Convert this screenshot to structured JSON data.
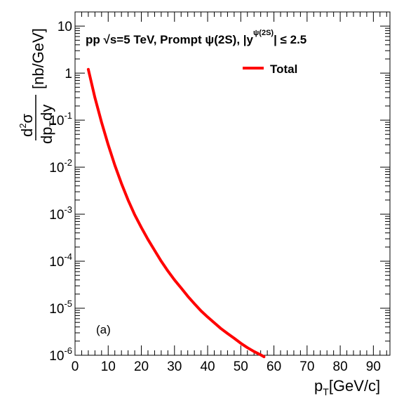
{
  "chart_data": {
    "type": "line",
    "title": "pp  √s=5 TeV, Prompt  ψ(2S), |y",
    "title_superscript": "ψ(2S)",
    "title_suffix": "| ≤ 2.5",
    "xlabel": "p",
    "xlabel_sub": "T",
    "xlabel_unit": "[GeV/c]",
    "ylabel_num": "d",
    "ylabel_num_sup": "2",
    "ylabel_num_tail": "σ",
    "ylabel_den": "dp",
    "ylabel_den_sub": "T",
    "ylabel_den_tail": "dy",
    "ylabel_unit": "[nb/GeV]",
    "panel_label": "(a)",
    "xlim": [
      0,
      95
    ],
    "ylim": [
      1e-06,
      20
    ],
    "yscale": "log",
    "x_ticks": [
      0,
      10,
      20,
      30,
      40,
      50,
      60,
      70,
      80,
      90
    ],
    "y_ticks": [
      {
        "value": 1e-06,
        "base": "10",
        "exp": "-6"
      },
      {
        "value": 1e-05,
        "base": "10",
        "exp": "-5"
      },
      {
        "value": 0.0001,
        "base": "10",
        "exp": "-4"
      },
      {
        "value": 0.001,
        "base": "10",
        "exp": "-3"
      },
      {
        "value": 0.01,
        "base": "10",
        "exp": "-2"
      },
      {
        "value": 0.1,
        "base": "10",
        "exp": "-1"
      },
      {
        "value": 1,
        "base": "1",
        "exp": ""
      },
      {
        "value": 10,
        "base": "10",
        "exp": ""
      }
    ],
    "legend": {
      "placement": "top-right"
    },
    "series": [
      {
        "name": "Total",
        "color": "#ff0000",
        "x": [
          4,
          6,
          8,
          10,
          12,
          14,
          16,
          18,
          20,
          22,
          24,
          26,
          28,
          30,
          32,
          34,
          36,
          38,
          40,
          42,
          44,
          46,
          48,
          50,
          52,
          54,
          56,
          57
        ],
        "y": [
          1.2,
          0.3,
          0.09,
          0.03,
          0.011,
          0.0045,
          0.002,
          0.00097,
          0.00052,
          0.00029,
          0.00017,
          0.0001,
          6.2e-05,
          4e-05,
          2.7e-05,
          1.8e-05,
          1.25e-05,
          8.8e-06,
          6.5e-06,
          4.9e-06,
          3.7e-06,
          2.9e-06,
          2.3e-06,
          1.8e-06,
          1.45e-06,
          1.2e-06,
          1.02e-06,
          9.3e-07
        ]
      }
    ]
  }
}
